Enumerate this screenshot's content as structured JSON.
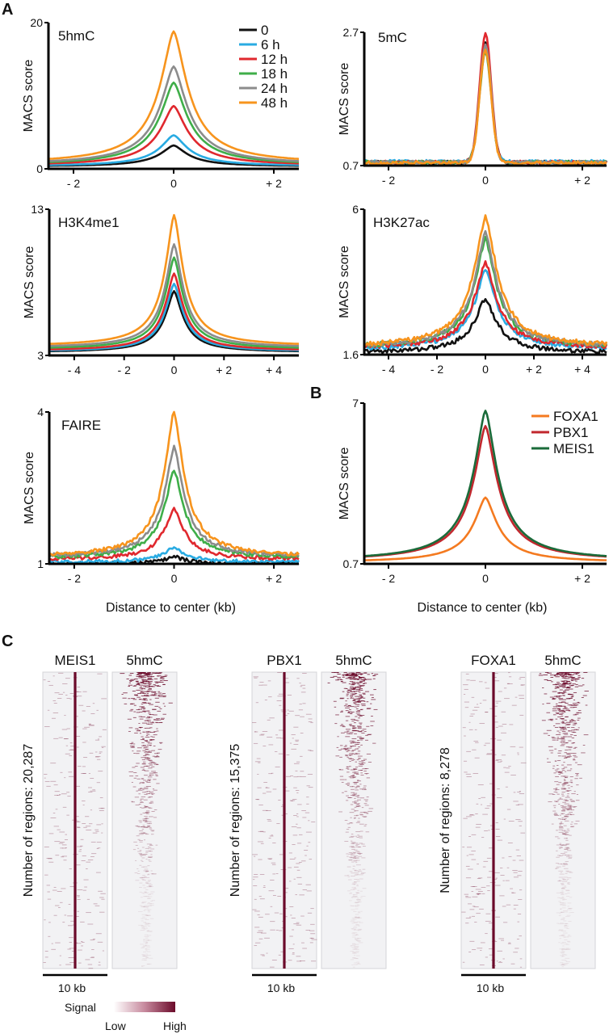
{
  "panels": {
    "A": "A",
    "B": "B",
    "C": "C"
  },
  "chart_data": [
    {
      "id": "5hmC",
      "type": "line",
      "title": "5hmC",
      "xlabel": "",
      "ylabel": "MACS score",
      "xlim": [
        -2.5,
        2.5
      ],
      "ylim": [
        0,
        20
      ],
      "xticks": [
        -2,
        0,
        2
      ],
      "xtick_labels": [
        "- 2",
        "0",
        "+ 2"
      ],
      "ytick_labels": [
        "0",
        "20"
      ],
      "legend": "top-right",
      "width": 1,
      "series": [
        {
          "name": "0",
          "color": "#111111",
          "baseline": 0.3,
          "peak": 3.2
        },
        {
          "name": "6 h",
          "color": "#29abe2",
          "baseline": 0.35,
          "peak": 4.6
        },
        {
          "name": "12 h",
          "color": "#e0282e",
          "baseline": 0.4,
          "peak": 8.6
        },
        {
          "name": "18 h",
          "color": "#3fae49",
          "baseline": 0.45,
          "peak": 11.8
        },
        {
          "name": "24 h",
          "color": "#8c8c8c",
          "baseline": 0.5,
          "peak": 14.0
        },
        {
          "name": "48 h",
          "color": "#f7941d",
          "baseline": 0.6,
          "peak": 18.8
        }
      ]
    },
    {
      "id": "5mC",
      "type": "line",
      "title": "5mC",
      "xlabel": "",
      "ylabel": "MACS score",
      "xlim": [
        -2.5,
        2.5
      ],
      "ylim": [
        0.7,
        2.7
      ],
      "xticks": [
        -2,
        0,
        2
      ],
      "xtick_labels": [
        "- 2",
        "0",
        "+ 2"
      ],
      "ytick_labels": [
        "0.7",
        "2.7"
      ],
      "width": 0.12,
      "noise": 0.03,
      "series": [
        {
          "name": "0",
          "color": "#111111",
          "baseline": 0.75,
          "peak": 2.55
        },
        {
          "name": "6 h",
          "color": "#29abe2",
          "baseline": 0.76,
          "peak": 2.5
        },
        {
          "name": "12 h",
          "color": "#e0282e",
          "baseline": 0.75,
          "peak": 2.68
        },
        {
          "name": "18 h",
          "color": "#3fae49",
          "baseline": 0.75,
          "peak": 2.4
        },
        {
          "name": "24 h",
          "color": "#8c8c8c",
          "baseline": 0.75,
          "peak": 2.5
        },
        {
          "name": "48 h",
          "color": "#f7941d",
          "baseline": 0.74,
          "peak": 2.42
        }
      ]
    },
    {
      "id": "H3K4me1",
      "type": "line",
      "title": "H3K4me1",
      "xlabel": "",
      "ylabel": "MACS score",
      "xlim": [
        -5,
        5
      ],
      "ylim": [
        3,
        13
      ],
      "xticks": [
        -4,
        -2,
        0,
        2,
        4
      ],
      "xtick_labels": [
        "- 4",
        "- 2",
        "0",
        "+ 2",
        "+ 4"
      ],
      "ytick_labels": [
        "3",
        "13"
      ],
      "width": 1.3,
      "series": [
        {
          "name": "0",
          "color": "#111111",
          "baseline": 3.2,
          "peak": 7.4
        },
        {
          "name": "6 h",
          "color": "#29abe2",
          "baseline": 3.25,
          "peak": 7.9
        },
        {
          "name": "12 h",
          "color": "#e0282e",
          "baseline": 3.3,
          "peak": 8.6
        },
        {
          "name": "18 h",
          "color": "#3fae49",
          "baseline": 3.4,
          "peak": 9.7
        },
        {
          "name": "24 h",
          "color": "#8c8c8c",
          "baseline": 3.5,
          "peak": 10.6
        },
        {
          "name": "48 h",
          "color": "#f7941d",
          "baseline": 3.6,
          "peak": 12.6
        }
      ]
    },
    {
      "id": "H3K27ac",
      "type": "line",
      "title": "H3K27ac",
      "xlabel": "",
      "ylabel": "MACS score",
      "xlim": [
        -5,
        5
      ],
      "ylim": [
        1.6,
        6
      ],
      "xticks": [
        -4,
        -2,
        0,
        2,
        4
      ],
      "xtick_labels": [
        "- 4",
        "- 2",
        "0",
        "+ 2",
        "+ 4"
      ],
      "ytick_labels": [
        "1.6",
        "6"
      ],
      "width": 1.6,
      "noise": 0.04,
      "series": [
        {
          "name": "0",
          "color": "#111111",
          "baseline": 1.65,
          "peak": 3.3
        },
        {
          "name": "6 h",
          "color": "#29abe2",
          "baseline": 1.75,
          "peak": 4.2
        },
        {
          "name": "12 h",
          "color": "#e0282e",
          "baseline": 1.78,
          "peak": 4.4
        },
        {
          "name": "18 h",
          "color": "#3fae49",
          "baseline": 1.8,
          "peak": 5.1
        },
        {
          "name": "24 h",
          "color": "#8c8c8c",
          "baseline": 1.8,
          "peak": 5.3
        },
        {
          "name": "48 h",
          "color": "#f7941d",
          "baseline": 1.8,
          "peak": 6.0,
          "double_peak": true
        }
      ]
    },
    {
      "id": "FAIRE",
      "type": "line",
      "title": "FAIRE",
      "xlabel": "Distance to center (kb)",
      "ylabel": "MACS score",
      "xlim": [
        -2.5,
        2.5
      ],
      "ylim": [
        1,
        4
      ],
      "xticks": [
        -2,
        0,
        2
      ],
      "xtick_labels": [
        "- 2",
        "0",
        "+ 2"
      ],
      "ytick_labels": [
        "1",
        "4"
      ],
      "width": 0.7,
      "noise": 0.03,
      "series": [
        {
          "name": "0",
          "color": "#111111",
          "baseline": 1.0,
          "peak": 1.15,
          "double_peak": true
        },
        {
          "name": "6 h",
          "color": "#29abe2",
          "baseline": 1.03,
          "peak": 1.35,
          "double_peak": true
        },
        {
          "name": "12 h",
          "color": "#e0282e",
          "baseline": 1.08,
          "peak": 2.1
        },
        {
          "name": "18 h",
          "color": "#3fae49",
          "baseline": 1.1,
          "peak": 2.85
        },
        {
          "name": "24 h",
          "color": "#8c8c8c",
          "baseline": 1.12,
          "peak": 3.3
        },
        {
          "name": "48 h",
          "color": "#f7941d",
          "baseline": 1.12,
          "peak": 4.0
        }
      ]
    },
    {
      "id": "B",
      "type": "line",
      "title": "",
      "xlabel": "Distance to center (kb)",
      "ylabel": "MACS score",
      "xlim": [
        -2.5,
        2.5
      ],
      "ylim": [
        0.7,
        7
      ],
      "xticks": [
        -2,
        0,
        2
      ],
      "xtick_labels": [
        "- 2",
        "0",
        "+ 2"
      ],
      "ytick_labels": [
        "0.7",
        "7"
      ],
      "legend": "top-right",
      "width": 0.9,
      "series": [
        {
          "name": "FOXA1",
          "color": "#f47a20",
          "baseline": 0.75,
          "peak": 3.3
        },
        {
          "name": "PBX1",
          "color": "#c1272d",
          "baseline": 0.8,
          "peak": 6.1
        },
        {
          "name": "MEIS1",
          "color": "#1a6b3a",
          "baseline": 0.8,
          "peak": 6.7
        }
      ]
    }
  ],
  "heatmaps": [
    {
      "factor": "MEIS1",
      "mark": "5hmC",
      "regions_label": "Number of regions: 20,287",
      "scale_label": "10 kb"
    },
    {
      "factor": "PBX1",
      "mark": "5hmC",
      "regions_label": "Number of regions: 15,375",
      "scale_label": "10 kb"
    },
    {
      "factor": "FOXA1",
      "mark": "5hmC",
      "regions_label": "Number of regions: 8,278",
      "scale_label": "10 kb"
    }
  ],
  "colorbar": {
    "title": "Signal",
    "low": "Low",
    "high": "High",
    "low_color": "#ffffff",
    "high_color": "#6b0a2a"
  }
}
